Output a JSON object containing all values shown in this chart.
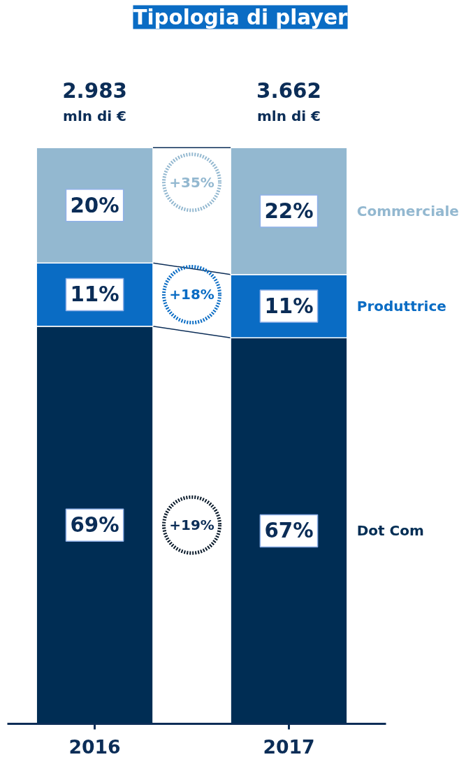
{
  "chart_data": {
    "type": "bar",
    "title": "Tipologia di player",
    "stacked": true,
    "categories": [
      "2016",
      "2017"
    ],
    "series": [
      {
        "name": "Dot Com",
        "color": "#002d54",
        "values": [
          69,
          67
        ],
        "value_labels": [
          "69%",
          "67%"
        ]
      },
      {
        "name": "Produttrice",
        "color": "#0a6cc4",
        "values": [
          11,
          11
        ],
        "value_labels": [
          "11%",
          "11%"
        ]
      },
      {
        "name": "Commerciale",
        "color": "#93b8d0",
        "values": [
          20,
          22
        ],
        "value_labels": [
          "20%",
          "22%"
        ]
      }
    ],
    "annotations": [
      "+19%",
      "+18%",
      "+35%",
      "2.983\nmln di €",
      "3.662\nmln di €"
    ],
    "ylim": [
      0,
      100
    ],
    "tick_labels": "x",
    "legend": false,
    "grid": false
  }
}
